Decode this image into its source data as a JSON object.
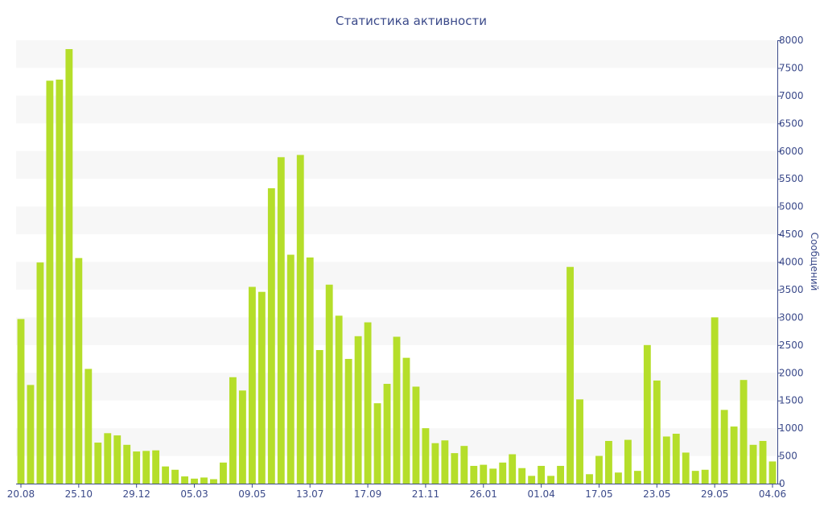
{
  "chart_data": {
    "type": "bar",
    "title": "Статистика активности",
    "xlabel": "",
    "ylabel": "Сообщений",
    "ylim": [
      0,
      8000
    ],
    "y_ticks": [
      0,
      500,
      1000,
      1500,
      2000,
      2500,
      3000,
      3500,
      4000,
      4500,
      5000,
      5500,
      6000,
      6500,
      7000,
      7500,
      8000
    ],
    "y_axis_position": "right",
    "grid": "alternating horizontal bands",
    "x_tick_labels": [
      {
        "index": 0,
        "label": "20.08"
      },
      {
        "index": 6,
        "label": "25.10"
      },
      {
        "index": 12,
        "label": "29.12"
      },
      {
        "index": 18,
        "label": "05.03"
      },
      {
        "index": 24,
        "label": "09.05"
      },
      {
        "index": 30,
        "label": "13.07"
      },
      {
        "index": 36,
        "label": "17.09"
      },
      {
        "index": 42,
        "label": "21.11"
      },
      {
        "index": 48,
        "label": "26.01"
      },
      {
        "index": 54,
        "label": "01.04"
      },
      {
        "index": 60,
        "label": "17.05"
      },
      {
        "index": 66,
        "label": "23.05"
      },
      {
        "index": 72,
        "label": "29.05"
      },
      {
        "index": 78,
        "label": "04.06"
      }
    ],
    "values": [
      2970,
      1780,
      3990,
      7270,
      7290,
      7840,
      4070,
      2070,
      740,
      910,
      870,
      700,
      580,
      590,
      600,
      310,
      250,
      130,
      90,
      110,
      80,
      380,
      1920,
      1680,
      3550,
      3460,
      5330,
      5890,
      4130,
      5930,
      4080,
      2410,
      3590,
      3030,
      2250,
      2660,
      2910,
      1450,
      1800,
      2650,
      2270,
      1750,
      1000,
      730,
      780,
      550,
      680,
      320,
      340,
      270,
      380,
      530,
      280,
      140,
      320,
      140,
      320,
      3910,
      1520,
      170,
      500,
      770,
      200,
      790,
      230,
      2500,
      1860,
      850,
      900,
      560,
      230,
      250,
      3000,
      1330,
      1030,
      1870,
      700,
      770,
      400
    ],
    "bar_color": "#b5de2a",
    "band_color": "#f7f7f7",
    "text_color": "#3b4a8a"
  }
}
